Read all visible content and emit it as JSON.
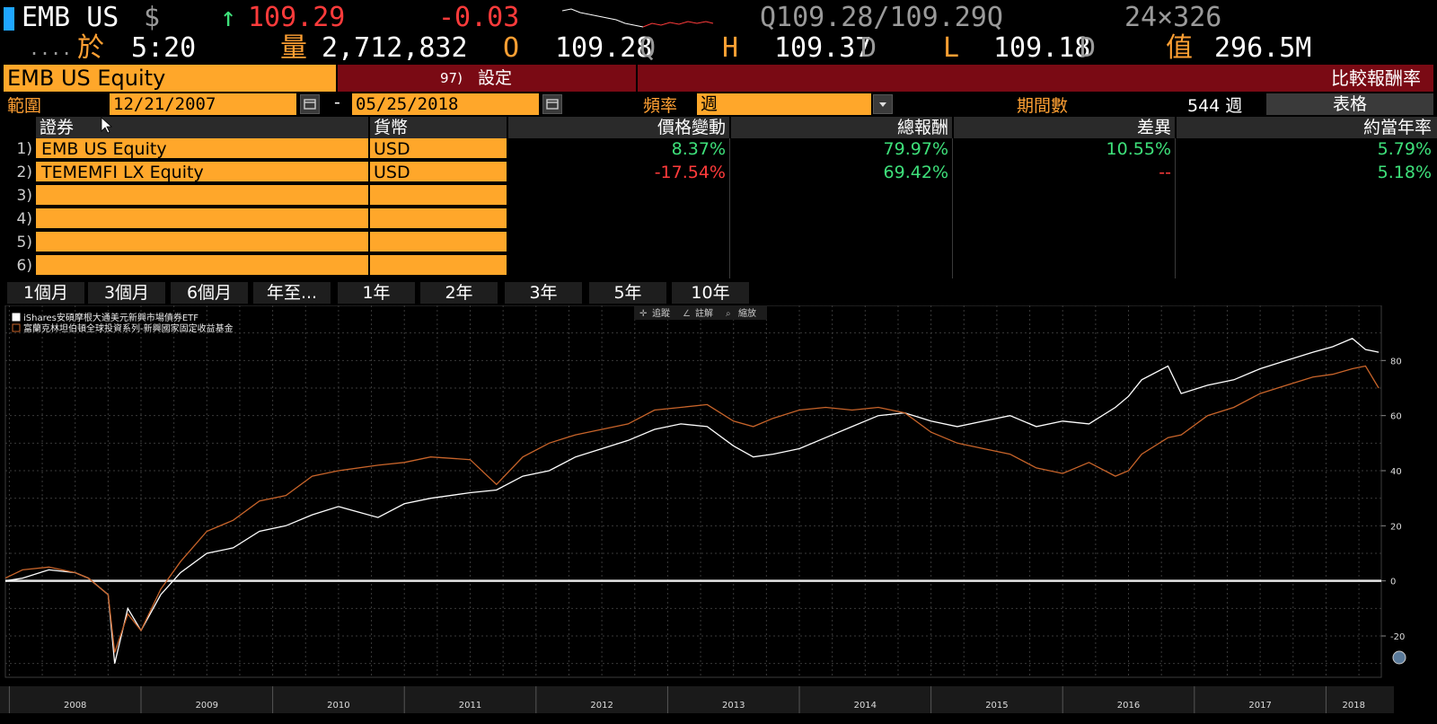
{
  "ticker": {
    "symbol": "EMB US",
    "currency_symbol": "$",
    "arrow": "↑",
    "last": "109.29",
    "change": "-0.03",
    "bid_ask": "Q109.28/109.29Q",
    "size": "24×326",
    "time_label": "於",
    "time": "5:20",
    "volume_label": "量",
    "volume": "2,712,832",
    "open_label": "O",
    "open": "109.28",
    "open_src": "Q",
    "high_label": "H",
    "high": "109.37",
    "high_src": "D",
    "low_label": "L",
    "low": "109.18",
    "low_src": "D",
    "value_label": "值",
    "value": "296.5M"
  },
  "header": {
    "security": "EMB US Equity",
    "settings_num": "97)",
    "settings_label": "設定",
    "function_title": "比較報酬率"
  },
  "filters": {
    "range_label": "範圍",
    "start_date": "12/21/2007",
    "dash": "-",
    "end_date": "05/25/2018",
    "freq_label": "頻率",
    "freq_value": "週",
    "periods_label": "期間數",
    "periods_value": "544 週",
    "view_button": "表格"
  },
  "table": {
    "headers": [
      "證券",
      "貨幣",
      "價格變動",
      "總報酬",
      "差異",
      "約當年率"
    ],
    "rows": [
      {
        "num": "1)",
        "security": "EMB US Equity",
        "currency": "USD",
        "price_change": "8.37%",
        "total_return": "79.97%",
        "difference": "10.55%",
        "annualized": "5.79%"
      },
      {
        "num": "2)",
        "security": "TEMEMFI LX Equity",
        "currency": "USD",
        "price_change": "-17.54%",
        "total_return": "69.42%",
        "difference": "--",
        "annualized": "5.18%"
      },
      {
        "num": "3)",
        "security": "",
        "currency": "",
        "price_change": "",
        "total_return": "",
        "difference": "",
        "annualized": ""
      },
      {
        "num": "4)",
        "security": "",
        "currency": "",
        "price_change": "",
        "total_return": "",
        "difference": "",
        "annualized": ""
      },
      {
        "num": "5)",
        "security": "",
        "currency": "",
        "price_change": "",
        "total_return": "",
        "difference": "",
        "annualized": ""
      },
      {
        "num": "6)",
        "security": "",
        "currency": "",
        "price_change": "",
        "total_return": "",
        "difference": "",
        "annualized": ""
      }
    ],
    "colors": {
      "positive": "#3ee07a",
      "negative": "#ff3b3b"
    }
  },
  "periods": [
    "1個月",
    "3個月",
    "6個月",
    "年至...",
    "1年",
    "2年",
    "3年",
    "5年",
    "10年"
  ],
  "chart_tools": [
    "追蹤",
    "註解",
    "縮放"
  ],
  "chart_data": {
    "type": "line",
    "x": [
      2007.97,
      2008.1,
      2008.3,
      2008.5,
      2008.6,
      2008.75,
      2008.8,
      2008.9,
      2009.0,
      2009.15,
      2009.3,
      2009.5,
      2009.7,
      2009.9,
      2010.1,
      2010.3,
      2010.5,
      2010.8,
      2011.0,
      2011.2,
      2011.5,
      2011.7,
      2011.9,
      2012.1,
      2012.3,
      2012.5,
      2012.7,
      2012.9,
      2013.1,
      2013.3,
      2013.5,
      2013.65,
      2013.8,
      2014.0,
      2014.2,
      2014.4,
      2014.6,
      2014.8,
      2015.0,
      2015.2,
      2015.4,
      2015.6,
      2015.8,
      2016.0,
      2016.2,
      2016.4,
      2016.5,
      2016.6,
      2016.8,
      2016.9,
      2017.1,
      2017.3,
      2017.5,
      2017.7,
      2017.9,
      2018.05,
      2018.2,
      2018.3,
      2018.4
    ],
    "series": [
      {
        "name": "iShares安碩摩根大通美元新興市場債券ETF",
        "color": "#ffffff",
        "values": [
          0,
          1,
          4,
          3,
          1,
          -5,
          -30,
          -10,
          -18,
          -5,
          3,
          10,
          12,
          18,
          20,
          24,
          27,
          23,
          28,
          30,
          32,
          33,
          38,
          40,
          45,
          48,
          51,
          55,
          57,
          56,
          49,
          45,
          46,
          48,
          52,
          56,
          60,
          61,
          58,
          56,
          58,
          60,
          56,
          58,
          57,
          63,
          67,
          73,
          78,
          68,
          71,
          73,
          77,
          80,
          83,
          85,
          88,
          84,
          83
        ]
      },
      {
        "name": "富蘭克林坦伯頓全球投資系列-新興國家固定收益基金",
        "color": "#c8642a",
        "values": [
          1,
          4,
          5,
          3,
          1,
          -5,
          -26,
          -12,
          -18,
          -3,
          7,
          18,
          22,
          29,
          31,
          38,
          40,
          42,
          43,
          45,
          44,
          35,
          45,
          50,
          53,
          55,
          57,
          62,
          63,
          64,
          58,
          56,
          59,
          62,
          63,
          62,
          63,
          61,
          54,
          50,
          48,
          46,
          41,
          39,
          43,
          38,
          40,
          46,
          52,
          53,
          60,
          63,
          68,
          71,
          74,
          75,
          77,
          78,
          70
        ]
      }
    ],
    "xlabel": "",
    "ylabel": "",
    "xlim": [
      2007.97,
      2018.42
    ],
    "ylim": [
      -35,
      100
    ],
    "y_ticks": [
      -20,
      0,
      20,
      40,
      60,
      80
    ],
    "x_ticks": [
      "2008",
      "2009",
      "2010",
      "2011",
      "2012",
      "2013",
      "2014",
      "2015",
      "2016",
      "2017",
      "2018"
    ],
    "grid": true,
    "legend": "top-left"
  }
}
